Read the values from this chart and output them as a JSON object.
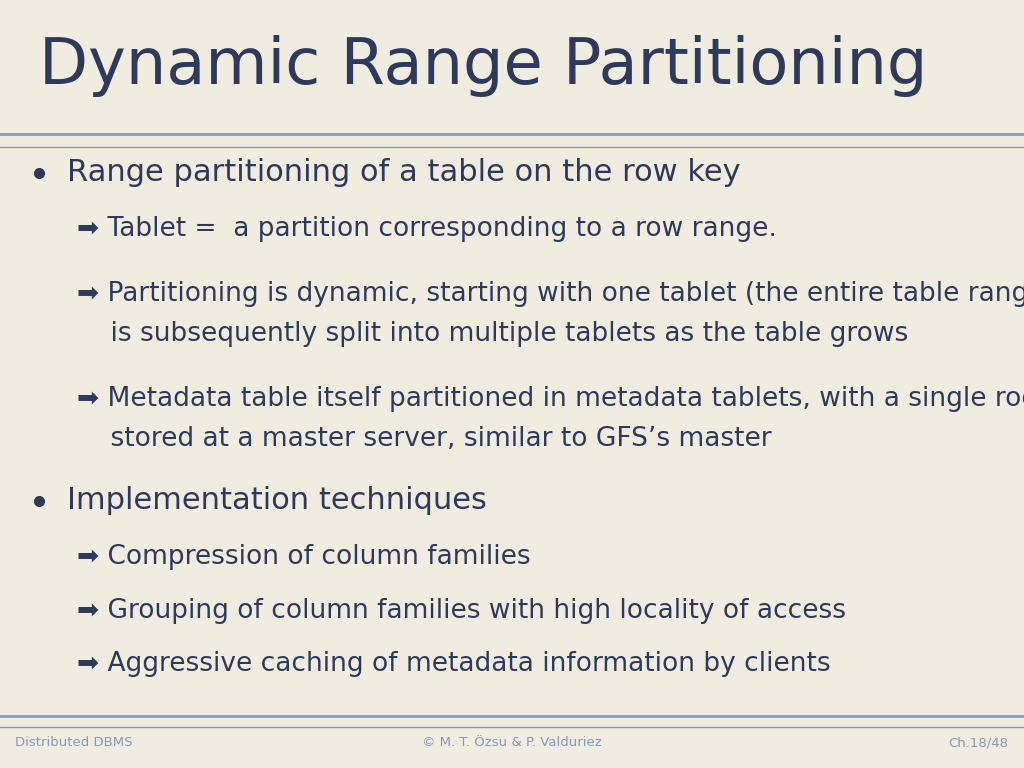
{
  "title": "Dynamic Range Partitioning",
  "title_color": "#2d3a5c",
  "background_color": "#f0ece0",
  "line_color": "#8899bb",
  "text_color": "#2d3a5c",
  "footer_color": "#8899bb",
  "bullet_color": "#2d3a5c",
  "background_lower": "#dbd9d0",
  "bullet1": "Range partitioning of a table on the row key",
  "sub1_1": "➡ Tablet =  a partition corresponding to a row range.",
  "sub1_2_line1": "➡ Partitioning is dynamic, starting with one tablet (the entire table range) which",
  "sub1_2_line2": "    is subsequently split into multiple tablets as the table grows",
  "sub1_3_line1": "➡ Metadata table itself partitioned in metadata tablets, with a single root tablet",
  "sub1_3_line2": "    stored at a master server, similar to GFS’s master",
  "bullet2": "Implementation techniques",
  "sub2_1": "➡ Compression of column families",
  "sub2_2": "➡ Grouping of column families with high locality of access",
  "sub2_3": "➡ Aggressive caching of metadata information by clients",
  "footer_left": "Distributed DBMS",
  "footer_center": "© M. T. Özsu & P. Valduriez",
  "footer_right": "Ch.18/48"
}
